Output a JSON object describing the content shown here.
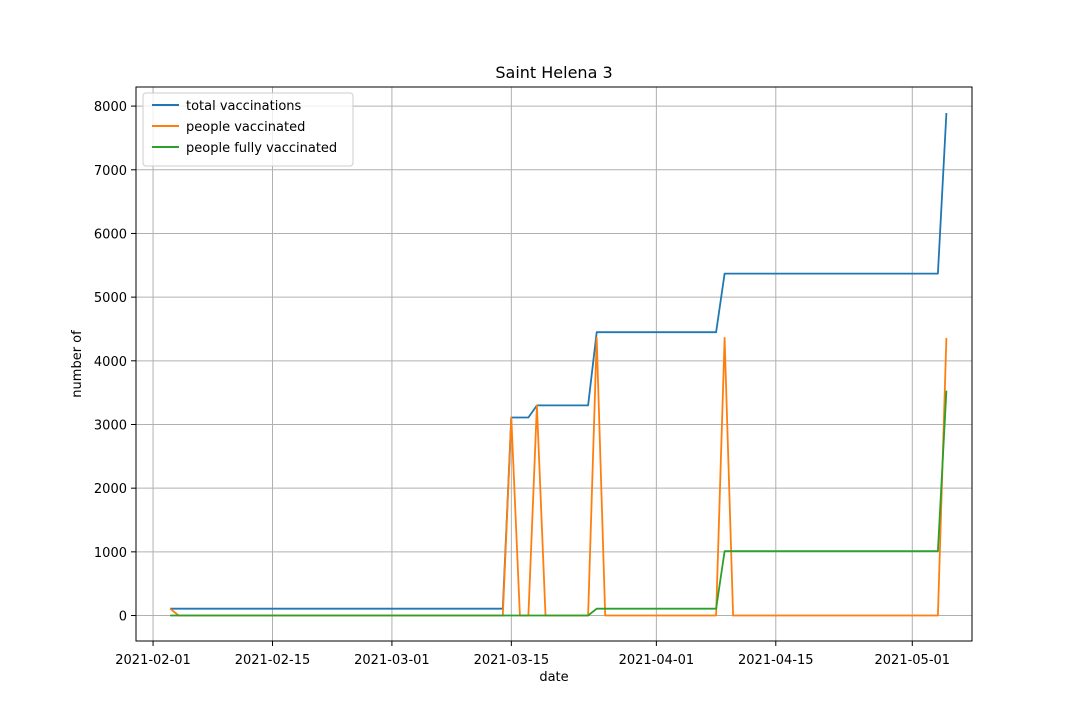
{
  "chart_data": {
    "type": "line",
    "title": "Saint Helena 3",
    "xlabel": "date",
    "ylabel": "number of",
    "xlim": [
      "2021-01-30",
      "2021-05-08"
    ],
    "ylim": [
      -400,
      8300
    ],
    "x_ticks": [
      "2021-02-01",
      "2021-02-15",
      "2021-03-01",
      "2021-03-15",
      "2021-04-01",
      "2021-04-15",
      "2021-05-01"
    ],
    "y_ticks": [
      0,
      1000,
      2000,
      3000,
      4000,
      5000,
      6000,
      7000,
      8000
    ],
    "grid": true,
    "legend_position": "top-left",
    "series": [
      {
        "name": "total vaccinations",
        "color": "#1f77b4",
        "points": [
          [
            "2021-02-03",
            107
          ],
          [
            "2021-03-14",
            107
          ],
          [
            "2021-03-15",
            3110
          ],
          [
            "2021-03-17",
            3110
          ],
          [
            "2021-03-18",
            3300
          ],
          [
            "2021-03-24",
            3300
          ],
          [
            "2021-03-25",
            4450
          ],
          [
            "2021-04-08",
            4450
          ],
          [
            "2021-04-09",
            5370
          ],
          [
            "2021-05-04",
            5370
          ],
          [
            "2021-05-05",
            7890
          ]
        ]
      },
      {
        "name": "people vaccinated",
        "color": "#ff7f0e",
        "points": [
          [
            "2021-02-03",
            107
          ],
          [
            "2021-02-04",
            0
          ],
          [
            "2021-03-14",
            0
          ],
          [
            "2021-03-15",
            3110
          ],
          [
            "2021-03-16",
            0
          ],
          [
            "2021-03-17",
            0
          ],
          [
            "2021-03-18",
            3300
          ],
          [
            "2021-03-19",
            0
          ],
          [
            "2021-03-24",
            0
          ],
          [
            "2021-03-25",
            4360
          ],
          [
            "2021-03-26",
            0
          ],
          [
            "2021-04-08",
            0
          ],
          [
            "2021-04-09",
            4360
          ],
          [
            "2021-04-10",
            0
          ],
          [
            "2021-05-04",
            0
          ],
          [
            "2021-05-05",
            4360
          ]
        ]
      },
      {
        "name": "people fully vaccinated",
        "color": "#2ca02c",
        "points": [
          [
            "2021-02-03",
            0
          ],
          [
            "2021-03-24",
            0
          ],
          [
            "2021-03-25",
            107
          ],
          [
            "2021-04-08",
            107
          ],
          [
            "2021-04-09",
            1010
          ],
          [
            "2021-05-04",
            1010
          ],
          [
            "2021-05-05",
            3530
          ]
        ]
      }
    ]
  }
}
